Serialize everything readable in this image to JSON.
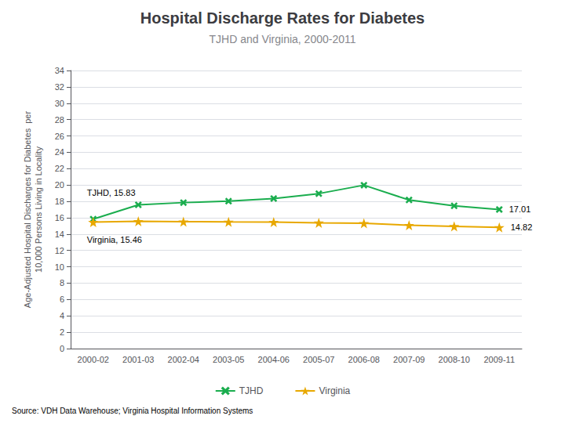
{
  "chart_data": {
    "type": "line",
    "title": "Hospital Discharge Rates for Diabetes",
    "subtitle": "TJHD and Virginia, 2000-2011",
    "ylabel": "Age-Adjusted Hospital Discharges for Diabetes  per\n10,000 Persons Living in Locality",
    "source": "Source: VDH Data Warehouse; Virginia Hospital Information Systems",
    "categories": [
      "2000-02",
      "2001-03",
      "2002-04",
      "2003-05",
      "2004-06",
      "2005-07",
      "2006-08",
      "2007-09",
      "2008-10",
      "2009-11"
    ],
    "series": [
      {
        "name": "TJHD",
        "color": "#1AAD4E",
        "marker": "x",
        "values": [
          15.83,
          17.57,
          17.85,
          18.02,
          18.35,
          18.95,
          19.98,
          18.17,
          17.45,
          17.01
        ]
      },
      {
        "name": "Virginia",
        "color": "#E8A800",
        "marker": "star",
        "values": [
          15.46,
          15.56,
          15.52,
          15.49,
          15.47,
          15.38,
          15.32,
          15.09,
          14.95,
          14.82
        ]
      }
    ],
    "ylim": [
      0,
      34
    ],
    "yticks": [
      0,
      2,
      4,
      6,
      8,
      10,
      12,
      14,
      16,
      18,
      20,
      22,
      24,
      26,
      28,
      30,
      32,
      34
    ],
    "grid": true,
    "legend": "bottom",
    "annotations": [
      {
        "text": "TJHD, 15.83",
        "series": "TJHD",
        "category": "2000-02"
      },
      {
        "text": "Virginia, 15.46",
        "series": "Virginia",
        "category": "2000-02"
      },
      {
        "text": "17.01",
        "series": "TJHD",
        "category": "2009-11"
      },
      {
        "text": "14.82",
        "series": "Virginia",
        "category": "2009-11"
      }
    ]
  }
}
